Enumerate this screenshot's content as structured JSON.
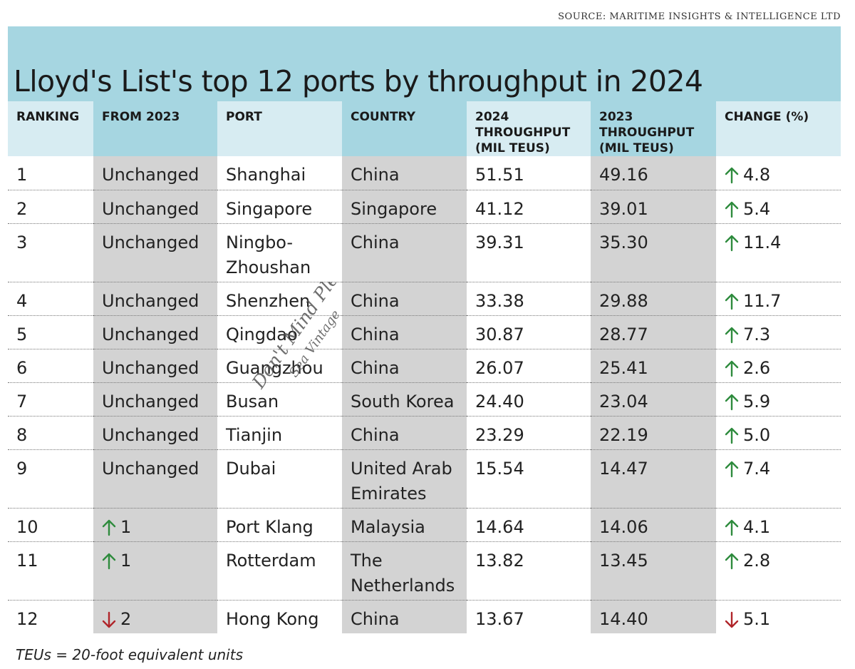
{
  "source": "SOURCE: MARITIME INSIGHTS & INTELLIGENCE LTD",
  "title": "Lloyd's List's top 12 ports by throughput in 2024",
  "headers": {
    "ranking": "RANKING",
    "from2023": "FROM 2023",
    "port": "PORT",
    "country": "COUNTRY",
    "t2024": [
      "2024",
      "THROUGHPUT",
      "(MIL TEUS)"
    ],
    "t2023": [
      "2023",
      "THROUGHPUT",
      "(MIL TEUS)"
    ],
    "change": "CHANGE (%)"
  },
  "rows": [
    {
      "rank": "1",
      "from2023": {
        "dir": "none",
        "text": "Unchanged"
      },
      "port": "Shanghai",
      "country": "China",
      "t2024": "51.51",
      "t2023": "49.16",
      "change": {
        "dir": "up",
        "text": "4.8"
      }
    },
    {
      "rank": "2",
      "from2023": {
        "dir": "none",
        "text": "Unchanged"
      },
      "port": "Singapore",
      "country": "Singapore",
      "t2024": "41.12",
      "t2023": "39.01",
      "change": {
        "dir": "up",
        "text": "5.4"
      }
    },
    {
      "rank": "3",
      "from2023": {
        "dir": "none",
        "text": "Unchanged"
      },
      "port": "Ningbo-Zhoushan",
      "country": "China",
      "t2024": "39.31",
      "t2023": "35.30",
      "change": {
        "dir": "up",
        "text": "11.4"
      }
    },
    {
      "rank": "4",
      "from2023": {
        "dir": "none",
        "text": "Unchanged"
      },
      "port": "Shenzhen",
      "country": "China",
      "t2024": "33.38",
      "t2023": "29.88",
      "change": {
        "dir": "up",
        "text": "11.7"
      }
    },
    {
      "rank": "5",
      "from2023": {
        "dir": "none",
        "text": "Unchanged"
      },
      "port": "Qingdao",
      "country": "China",
      "t2024": "30.87",
      "t2023": "28.77",
      "change": {
        "dir": "up",
        "text": "7.3"
      }
    },
    {
      "rank": "6",
      "from2023": {
        "dir": "none",
        "text": "Unchanged"
      },
      "port": "Guangzhou",
      "country": "China",
      "t2024": "26.07",
      "t2023": "25.41",
      "change": {
        "dir": "up",
        "text": "2.6"
      }
    },
    {
      "rank": "7",
      "from2023": {
        "dir": "none",
        "text": "Unchanged"
      },
      "port": "Busan",
      "country": "South Korea",
      "t2024": "24.40",
      "t2023": "23.04",
      "change": {
        "dir": "up",
        "text": "5.9"
      }
    },
    {
      "rank": "8",
      "from2023": {
        "dir": "none",
        "text": "Unchanged"
      },
      "port": "Tianjin",
      "country": "China",
      "t2024": "23.29",
      "t2023": "22.19",
      "change": {
        "dir": "up",
        "text": "5.0"
      }
    },
    {
      "rank": "9",
      "from2023": {
        "dir": "none",
        "text": "Unchanged"
      },
      "port": "Dubai",
      "country": "United Arab Emirates",
      "t2024": "15.54",
      "t2023": "14.47",
      "change": {
        "dir": "up",
        "text": "7.4"
      }
    },
    {
      "rank": "10",
      "from2023": {
        "dir": "up",
        "text": "1"
      },
      "port": "Port Klang",
      "country": "Malaysia",
      "t2024": "14.64",
      "t2023": "14.06",
      "change": {
        "dir": "up",
        "text": "4.1"
      }
    },
    {
      "rank": "11",
      "from2023": {
        "dir": "up",
        "text": "1"
      },
      "port": "Rotterdam",
      "country": "The Netherlands",
      "t2024": "13.82",
      "t2023": "13.45",
      "change": {
        "dir": "up",
        "text": "2.8"
      }
    },
    {
      "rank": "12",
      "from2023": {
        "dir": "down",
        "text": "2"
      },
      "port": "Hong Kong",
      "country": "China",
      "t2024": "13.67",
      "t2023": "14.40",
      "change": {
        "dir": "down",
        "text": "5.1"
      }
    }
  ],
  "footnote": "TEUs = 20-foot equivalent units",
  "watermark": {
    "line1": "Don't Mind Please",
    "line2": "Sea Vintage"
  },
  "colors": {
    "up_arrow": "#2e8b3d",
    "down_arrow": "#b0252a",
    "title_band": "#a6d6e1",
    "header_light": "#d7ecf2",
    "shaded_column": "#d3d3d3"
  },
  "icons": {
    "up": "arrow-up-icon",
    "down": "arrow-down-icon"
  }
}
